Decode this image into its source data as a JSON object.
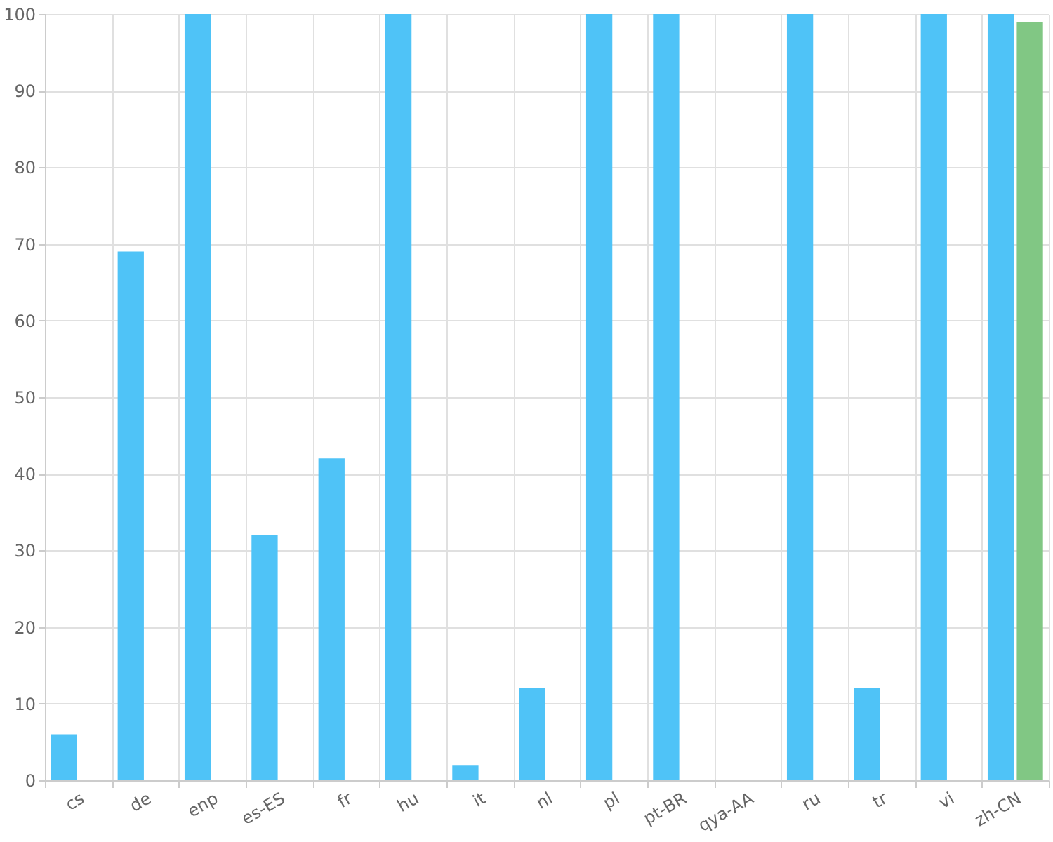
{
  "chart_data": {
    "type": "bar",
    "categories": [
      "cs",
      "de",
      "enp",
      "es-ES",
      "fr",
      "hu",
      "it",
      "nl",
      "pl",
      "pt-BR",
      "qya-AA",
      "ru",
      "tr",
      "vi",
      "zh-CN"
    ],
    "series": [
      {
        "color": "#4fc3f7",
        "values": [
          6,
          69,
          100,
          32,
          42,
          100,
          2,
          12,
          100,
          100,
          0,
          100,
          12,
          100,
          100
        ]
      },
      {
        "color": "#81c784",
        "values": [
          null,
          null,
          null,
          null,
          null,
          null,
          null,
          null,
          null,
          null,
          null,
          null,
          null,
          null,
          99
        ]
      }
    ],
    "ylim": [
      0,
      100
    ],
    "yticks": [
      0,
      10,
      20,
      30,
      40,
      50,
      60,
      70,
      80,
      90,
      100
    ],
    "grid": true,
    "legend": false
  }
}
